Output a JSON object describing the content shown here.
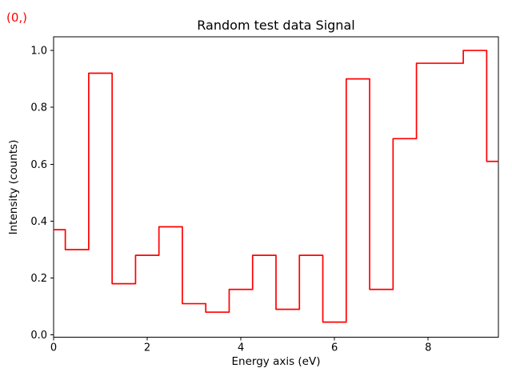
{
  "figure": {
    "nav_shape_label": "(0,)",
    "background_color": "#ffffff",
    "accent_color": "#ff0000"
  },
  "chart_data": {
    "type": "line",
    "drawstyle": "steps-mid",
    "title": "Random test data Signal",
    "xlabel": "Energy axis (eV)",
    "ylabel": "Intensity (counts)",
    "line_color": "#ff0000",
    "axis_color": "#000000",
    "grid": false,
    "legend": null,
    "xlim": [
      0,
      9.5
    ],
    "ylim": [
      -0.008,
      1.048
    ],
    "xtick_labels": [
      "0",
      "2",
      "4",
      "6",
      "8"
    ],
    "ytick_labels": [
      "0.0",
      "0.2",
      "0.4",
      "0.6",
      "0.8",
      "1.0"
    ],
    "x": [
      0.0,
      0.5,
      1.0,
      1.5,
      2.0,
      2.5,
      3.0,
      3.5,
      4.0,
      4.5,
      5.0,
      5.5,
      6.0,
      6.5,
      7.0,
      7.5,
      8.0,
      8.5,
      9.0,
      9.5
    ],
    "y": [
      0.37,
      0.3,
      0.92,
      0.18,
      0.28,
      0.38,
      0.11,
      0.08,
      0.16,
      0.28,
      0.09,
      0.28,
      0.045,
      0.9,
      0.16,
      0.69,
      0.955,
      0.955,
      1.0,
      0.61
    ]
  }
}
